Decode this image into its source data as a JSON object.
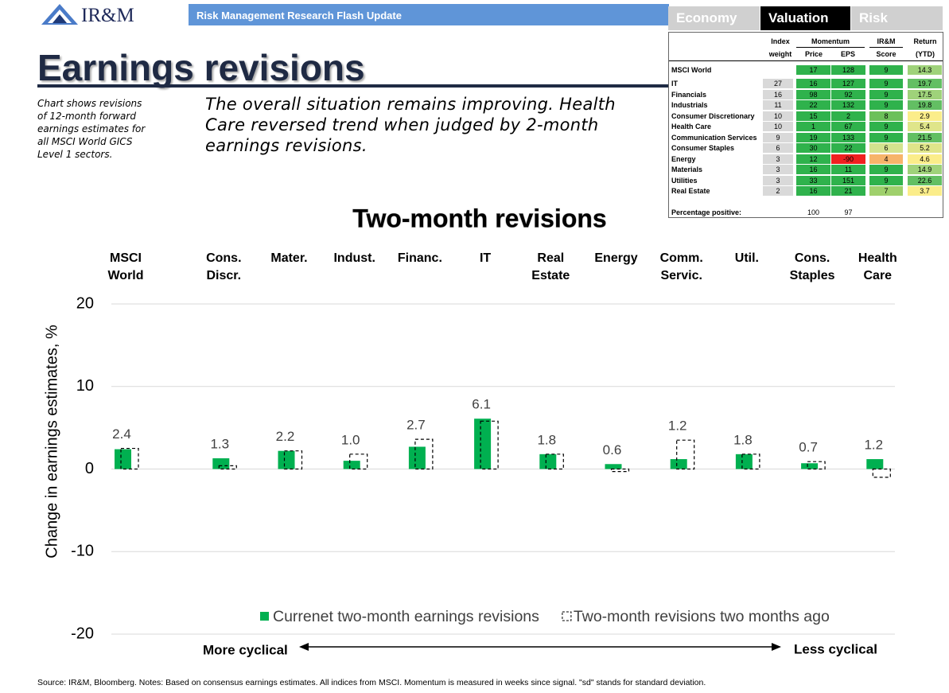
{
  "header": {
    "logo": "IR&M",
    "banner": "Risk Management Research Flash Update",
    "title": "Earnings revisions",
    "side_note": "Chart shows revisions\nof 12-month forward\nearnings estimates for\nall MSCI World GICS\nLevel 1 sectors.",
    "summary": "The overall situation remains improving. Health\nCare reversed trend when judged by 2-month\nearnings revisions."
  },
  "tabs": [
    "Economy",
    "Valuation",
    "Risk"
  ],
  "table": {
    "header_top": [
      "Index",
      "Momentum",
      "IR&M",
      "Return"
    ],
    "header_bottom": [
      "weight",
      "Price",
      "EPS",
      "Score",
      "(YTD)"
    ],
    "rows": [
      [
        "MSCI World",
        null,
        17,
        128,
        9,
        14.3
      ],
      [
        "IT",
        27,
        16,
        127,
        9,
        19.7
      ],
      [
        "Financials",
        16,
        98,
        92,
        9,
        17.5
      ],
      [
        "Industrials",
        11,
        22,
        132,
        9,
        19.8
      ],
      [
        "Consumer Discretionary",
        10,
        15,
        2,
        8,
        2.9
      ],
      [
        "Health Care",
        10,
        1,
        67,
        9,
        5.4
      ],
      [
        "Communication Services",
        9,
        19,
        133,
        9,
        21.5
      ],
      [
        "Consumer Staples",
        6,
        30,
        22,
        6,
        5.2
      ],
      [
        "Energy",
        3,
        12,
        -90,
        4,
        4.6
      ],
      [
        "Materials",
        3,
        16,
        11,
        9,
        14.9
      ],
      [
        "Utilities",
        3,
        33,
        151,
        9,
        22.6
      ],
      [
        "Real Estate",
        2,
        16,
        21,
        7,
        3.7
      ]
    ],
    "footer_row": [
      "Percentage positive:",
      100,
      97
    ]
  },
  "chart_data": {
    "type": "bar",
    "title": "Two-month revisions",
    "ylabel": "Change in earnings estimates, %",
    "categories": [
      "MSCI\nWorld",
      "Cons.\nDiscr.",
      "Mater.",
      "Indust.",
      "Financ.",
      "IT",
      "Real\nEstate",
      "Energy",
      "Comm.\nServic.",
      "Util.",
      "Cons.\nStaples",
      "Health\nCare"
    ],
    "series": [
      {
        "name": "Currenet two-month earnings revisions",
        "color": "#00b050",
        "style": "solid",
        "values": [
          2.4,
          1.3,
          2.2,
          1.0,
          2.7,
          6.1,
          1.8,
          0.6,
          1.2,
          1.8,
          0.7,
          1.2
        ],
        "value_labels": [
          "2.4",
          "1.3",
          "2.2",
          "1.0",
          "2.7",
          "6.1",
          "1.8",
          "0.6",
          "1.2",
          "1.8",
          "0.7",
          "1.2"
        ]
      },
      {
        "name": "Two-month revisions two months ago",
        "color": "#000000",
        "style": "dashed",
        "values": [
          2.5,
          0.4,
          2.2,
          1.8,
          3.6,
          5.8,
          1.8,
          -0.3,
          3.5,
          1.8,
          0.9,
          -1.0
        ]
      }
    ],
    "ylim": [
      -20,
      20
    ],
    "yticks": [
      -20,
      -10,
      0,
      10,
      20
    ],
    "grid": true,
    "legend": "bottom"
  },
  "footer": {
    "more_cyclical": "More cyclical",
    "less_cyclical": "Less cyclical",
    "source": "Source: IR&M, Bloomberg. Notes: Based on consensus earnings estimates. All indices from MSCI. Momentum is measured in weeks since signal. \"sd\" stands for standard deviation."
  }
}
